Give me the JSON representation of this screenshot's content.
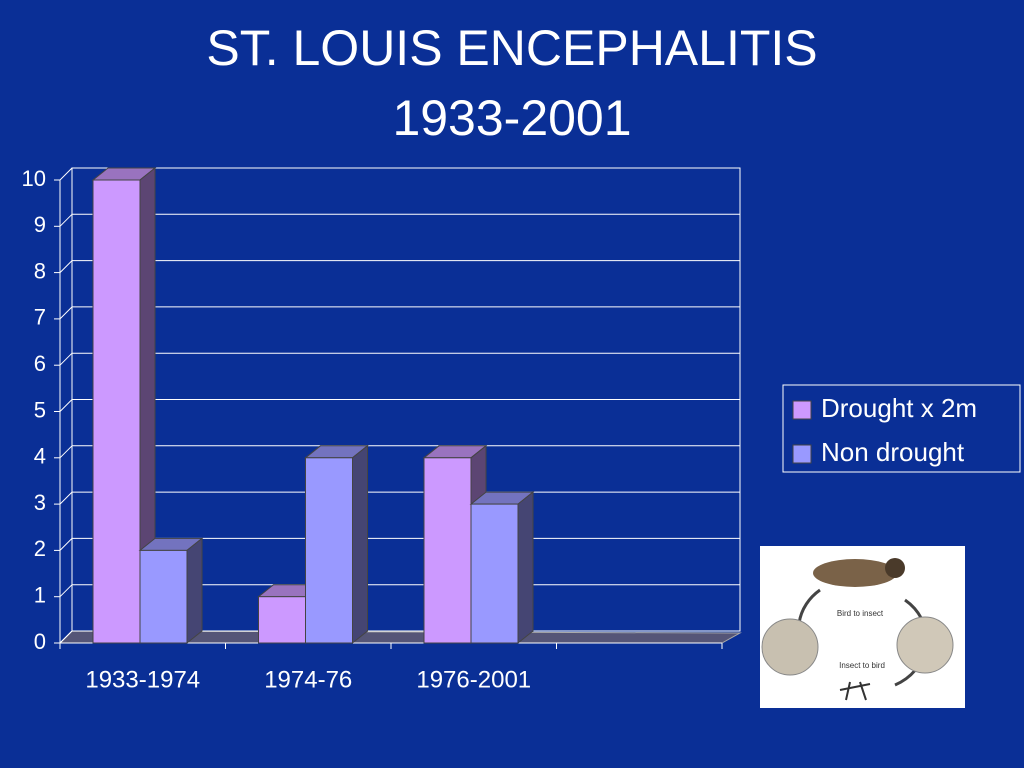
{
  "chart_data": {
    "type": "bar3d",
    "title": "ST. LOUIS ENCEPHALITIS",
    "subtitle": "1933-2001",
    "categories": [
      "1933-1974",
      "1974-76",
      "1976-2001",
      null
    ],
    "series": [
      {
        "name": "Drought x 2m",
        "color": "#cc99ff",
        "values": [
          10,
          1,
          4,
          null
        ]
      },
      {
        "name": "Non drought",
        "color": "#9999ff",
        "values": [
          2,
          4,
          3,
          null
        ]
      }
    ],
    "ylim": [
      0,
      10
    ],
    "yticks": [
      0,
      1,
      2,
      3,
      4,
      5,
      6,
      7,
      8,
      9,
      10
    ],
    "grid": true,
    "legend": "right"
  },
  "illustration": {
    "labels": [
      "Bird to insect",
      "Insect to bird"
    ]
  }
}
